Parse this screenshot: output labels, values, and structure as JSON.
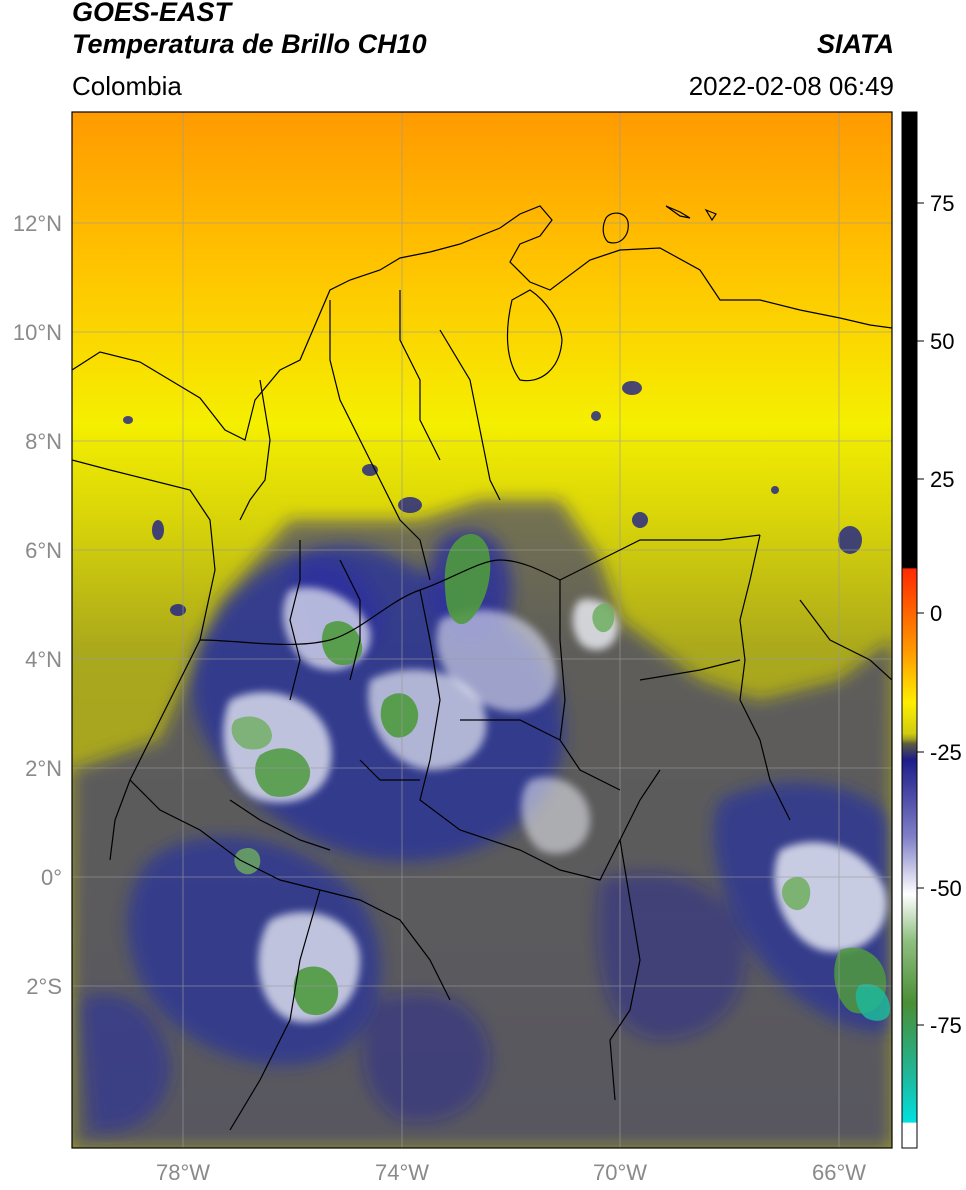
{
  "header": {
    "satellite": "GOES-EAST",
    "product": "Temperatura de Brillo CH10",
    "brand": "SIATA",
    "region": "Colombia",
    "timestamp": "2022-02-08 06:49"
  },
  "map": {
    "lat_labels": [
      "12°N",
      "10°N",
      "8°N",
      "6°N",
      "4°N",
      "2°N",
      "0°",
      "2°S"
    ],
    "lon_labels": [
      "78°W",
      "74°W",
      "70°W",
      "66°W"
    ],
    "colors": {
      "warm_orange": "#ff9a00",
      "warm_yellow": "#f2ef00",
      "olive": "#a5a51c",
      "deep_blue": "#1c1f8c",
      "white_cloud": "#e8ecf6",
      "green_core": "#4f9a3f",
      "gridline": "#9a9a9a"
    }
  },
  "colorbar": {
    "tick_labels": [
      "75",
      "50",
      "25",
      "0",
      "-25",
      "-50",
      "-75"
    ],
    "colors": [
      "#000000",
      "#ff2a00",
      "#ff9900",
      "#ffee00",
      "#a3a31f",
      "#1d1d8a",
      "#ffffff",
      "#4a8f35",
      "#00e0e0",
      "#ffffff"
    ]
  }
}
